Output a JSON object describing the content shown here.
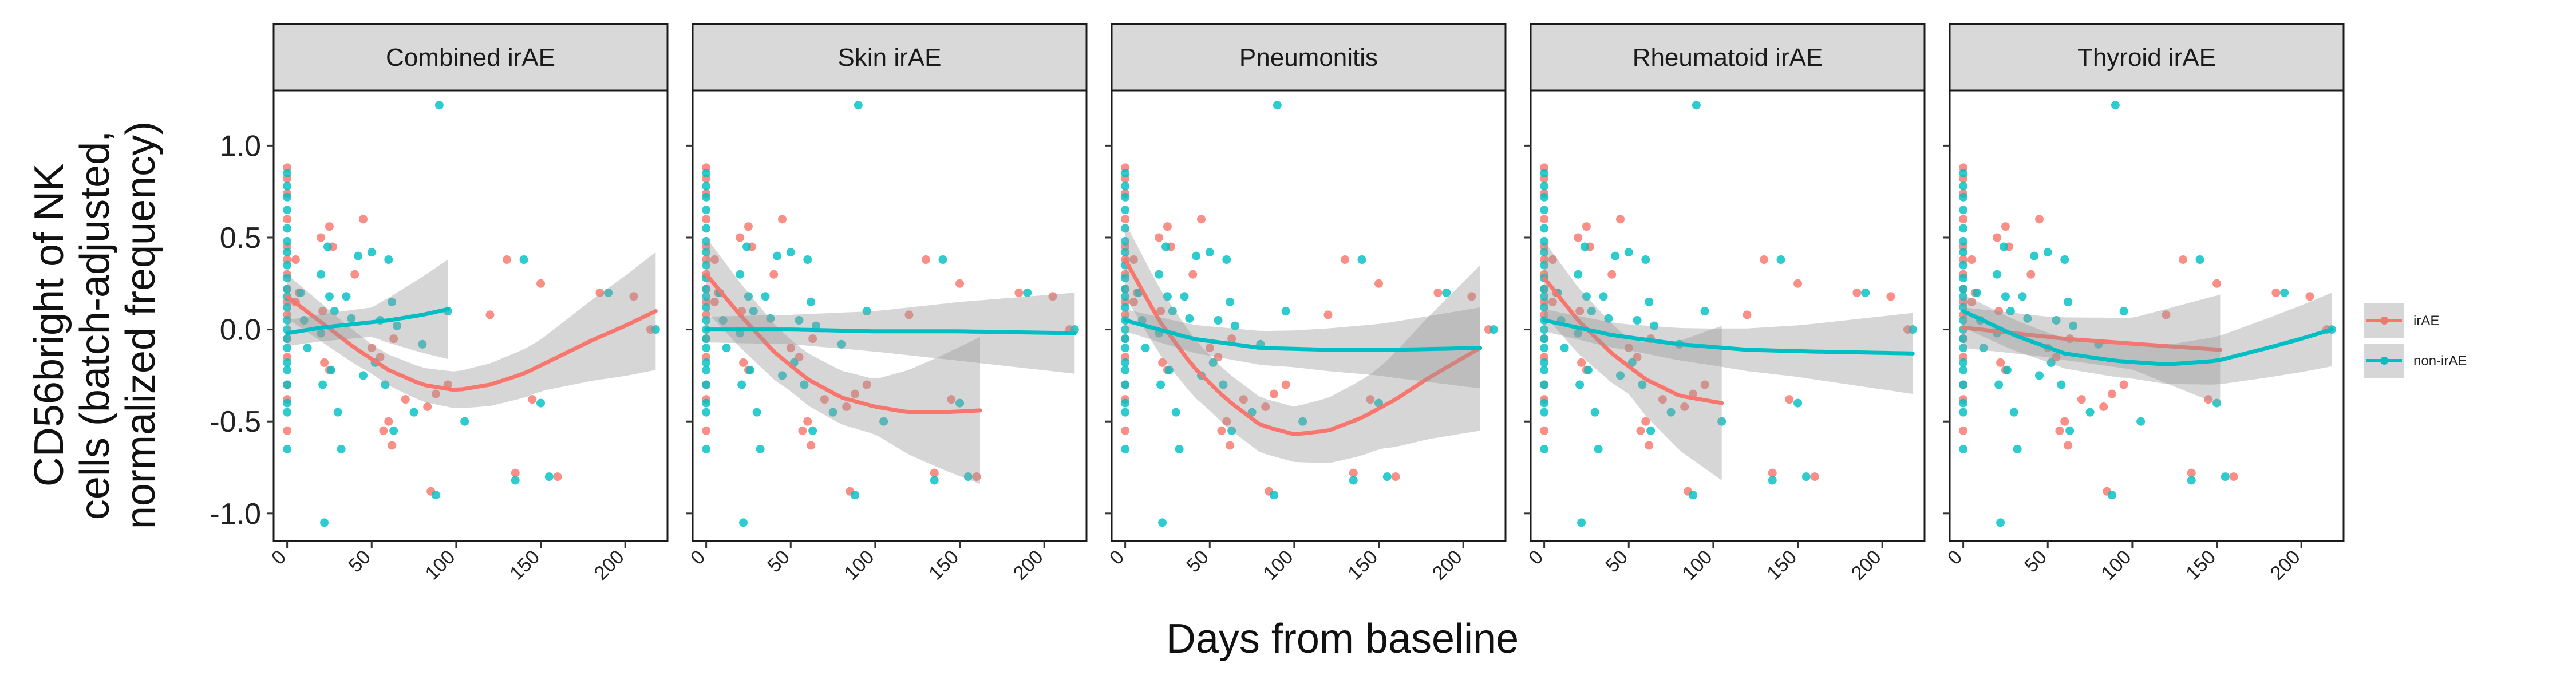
{
  "chart_data": {
    "type": "scatter",
    "xlabel": "Days from baseline",
    "ylabel_lines": [
      "CD56bright of NK",
      "cells (batch-adjusted,",
      "normalized frequency)"
    ],
    "xlim": [
      -8,
      225
    ],
    "ylim": [
      -1.15,
      1.3
    ],
    "x_ticks": [
      0,
      50,
      100,
      150,
      200
    ],
    "y_ticks": [
      -1.0,
      -0.5,
      0.0,
      0.5,
      1.0
    ],
    "y_tick_labels": [
      "-1.0",
      "-0.5",
      "0.0",
      "0.5",
      "1.0"
    ],
    "colors": {
      "irAE": "#F8766D",
      "non-irAE": "#00BFC4",
      "band": "#999999"
    },
    "legend": {
      "position": "right",
      "entries": [
        {
          "key": "irAE",
          "label": "irAE"
        },
        {
          "key": "non-irAE",
          "label": "non-irAE"
        }
      ]
    },
    "points": {
      "irAE": [
        [
          0,
          0.88
        ],
        [
          0,
          0.82
        ],
        [
          0,
          0.74
        ],
        [
          0,
          0.6
        ],
        [
          0,
          0.45
        ],
        [
          0,
          0.38
        ],
        [
          0,
          0.3
        ],
        [
          0,
          0.22
        ],
        [
          0,
          0.15
        ],
        [
          0,
          0.08
        ],
        [
          0,
          -0.05
        ],
        [
          0,
          -0.15
        ],
        [
          0,
          -0.3
        ],
        [
          0,
          -0.38
        ],
        [
          0,
          -0.55
        ],
        [
          5,
          0.38
        ],
        [
          5,
          0.15
        ],
        [
          7,
          0.2
        ],
        [
          20,
          0.5
        ],
        [
          21,
          0.1
        ],
        [
          22,
          -0.18
        ],
        [
          25,
          0.56
        ],
        [
          25,
          -0.22
        ],
        [
          27,
          0.45
        ],
        [
          40,
          0.3
        ],
        [
          45,
          0.6
        ],
        [
          50,
          -0.1
        ],
        [
          55,
          -0.15
        ],
        [
          57,
          -0.55
        ],
        [
          60,
          -0.5
        ],
        [
          62,
          -0.63
        ],
        [
          63,
          -0.05
        ],
        [
          70,
          -0.38
        ],
        [
          83,
          -0.42
        ],
        [
          85,
          -0.88
        ],
        [
          88,
          -0.35
        ],
        [
          95,
          -0.3
        ],
        [
          120,
          0.08
        ],
        [
          130,
          0.38
        ],
        [
          135,
          -0.78
        ],
        [
          145,
          -0.38
        ],
        [
          150,
          0.25
        ],
        [
          160,
          -0.8
        ],
        [
          185,
          0.2
        ],
        [
          205,
          0.18
        ],
        [
          215,
          0.0
        ]
      ],
      "non-irAE": [
        [
          0,
          0.85
        ],
        [
          0,
          0.78
        ],
        [
          0,
          0.72
        ],
        [
          0,
          0.65
        ],
        [
          0,
          0.55
        ],
        [
          0,
          0.48
        ],
        [
          0,
          0.42
        ],
        [
          0,
          0.35
        ],
        [
          0,
          0.28
        ],
        [
          0,
          0.22
        ],
        [
          0,
          0.18
        ],
        [
          0,
          0.12
        ],
        [
          0,
          0.05
        ],
        [
          0,
          0.0
        ],
        [
          0,
          -0.05
        ],
        [
          0,
          -0.1
        ],
        [
          0,
          -0.18
        ],
        [
          0,
          -0.22
        ],
        [
          0,
          -0.3
        ],
        [
          0,
          -0.4
        ],
        [
          0,
          -0.45
        ],
        [
          0,
          -0.65
        ],
        [
          8,
          0.2
        ],
        [
          10,
          0.05
        ],
        [
          12,
          -0.1
        ],
        [
          20,
          0.3
        ],
        [
          20,
          -0.02
        ],
        [
          21,
          -0.3
        ],
        [
          22,
          -1.05
        ],
        [
          24,
          0.45
        ],
        [
          25,
          0.18
        ],
        [
          26,
          -0.22
        ],
        [
          28,
          0.1
        ],
        [
          30,
          -0.45
        ],
        [
          32,
          -0.65
        ],
        [
          35,
          0.18
        ],
        [
          38,
          0.06
        ],
        [
          42,
          0.4
        ],
        [
          45,
          -0.25
        ],
        [
          50,
          0.42
        ],
        [
          52,
          -0.18
        ],
        [
          55,
          0.05
        ],
        [
          58,
          -0.3
        ],
        [
          60,
          0.38
        ],
        [
          62,
          0.15
        ],
        [
          63,
          -0.55
        ],
        [
          65,
          0.02
        ],
        [
          75,
          -0.45
        ],
        [
          80,
          -0.08
        ],
        [
          88,
          -0.9
        ],
        [
          90,
          1.22
        ],
        [
          95,
          0.1
        ],
        [
          105,
          -0.5
        ],
        [
          135,
          -0.82
        ],
        [
          140,
          0.38
        ],
        [
          150,
          -0.4
        ],
        [
          155,
          -0.8
        ],
        [
          190,
          0.2
        ],
        [
          218,
          0.0
        ]
      ]
    },
    "panels": [
      {
        "title": "Combined irAE",
        "fits": [
          {
            "group": "irAE",
            "x_range": [
              0,
              218
            ],
            "line": [
              [
                0,
                0.18
              ],
              [
                20,
                0.04
              ],
              [
                40,
                -0.1
              ],
              [
                60,
                -0.22
              ],
              [
                80,
                -0.3
              ],
              [
                100,
                -0.33
              ],
              [
                120,
                -0.3
              ],
              [
                140,
                -0.24
              ],
              [
                160,
                -0.15
              ],
              [
                180,
                -0.06
              ],
              [
                200,
                0.02
              ],
              [
                218,
                0.1
              ]
            ],
            "half_width": [
              [
                0,
                0.12
              ],
              [
                50,
                0.08
              ],
              [
                100,
                0.1
              ],
              [
                150,
                0.14
              ],
              [
                218,
                0.32
              ]
            ]
          },
          {
            "group": "non-irAE",
            "x_range": [
              0,
              95
            ],
            "line": [
              [
                0,
                -0.02
              ],
              [
                20,
                0.01
              ],
              [
                40,
                0.03
              ],
              [
                60,
                0.05
              ],
              [
                80,
                0.08
              ],
              [
                95,
                0.11
              ]
            ],
            "half_width": [
              [
                0,
                0.07
              ],
              [
                50,
                0.08
              ],
              [
                95,
                0.27
              ]
            ]
          }
        ]
      },
      {
        "title": "Skin irAE",
        "fits": [
          {
            "group": "irAE",
            "x_range": [
              0,
              162
            ],
            "line": [
              [
                0,
                0.3
              ],
              [
                20,
                0.08
              ],
              [
                40,
                -0.12
              ],
              [
                60,
                -0.27
              ],
              [
                80,
                -0.37
              ],
              [
                100,
                -0.42
              ],
              [
                120,
                -0.45
              ],
              [
                140,
                -0.45
              ],
              [
                162,
                -0.44
              ]
            ],
            "half_width": [
              [
                0,
                0.2
              ],
              [
                50,
                0.14
              ],
              [
                100,
                0.15
              ],
              [
                162,
                0.4
              ]
            ]
          },
          {
            "group": "non-irAE",
            "x_range": [
              0,
              218
            ],
            "line": [
              [
                0,
                0.0
              ],
              [
                50,
                0.0
              ],
              [
                100,
                -0.01
              ],
              [
                150,
                -0.01
              ],
              [
                218,
                -0.02
              ]
            ],
            "half_width": [
              [
                0,
                0.07
              ],
              [
                50,
                0.08
              ],
              [
                100,
                0.11
              ],
              [
                150,
                0.16
              ],
              [
                218,
                0.22
              ]
            ]
          }
        ]
      },
      {
        "title": "Pneumonitis",
        "fits": [
          {
            "group": "irAE",
            "x_range": [
              0,
              210
            ],
            "line": [
              [
                0,
                0.38
              ],
              [
                20,
                0.05
              ],
              [
                40,
                -0.2
              ],
              [
                60,
                -0.38
              ],
              [
                80,
                -0.52
              ],
              [
                100,
                -0.57
              ],
              [
                120,
                -0.55
              ],
              [
                140,
                -0.48
              ],
              [
                160,
                -0.38
              ],
              [
                180,
                -0.26
              ],
              [
                195,
                -0.18
              ],
              [
                210,
                -0.1
              ]
            ],
            "half_width": [
              [
                0,
                0.2
              ],
              [
                50,
                0.15
              ],
              [
                100,
                0.15
              ],
              [
                150,
                0.22
              ],
              [
                210,
                0.45
              ]
            ]
          },
          {
            "group": "non-irAE",
            "x_range": [
              0,
              210
            ],
            "line": [
              [
                0,
                0.05
              ],
              [
                40,
                -0.05
              ],
              [
                80,
                -0.1
              ],
              [
                120,
                -0.11
              ],
              [
                160,
                -0.11
              ],
              [
                210,
                -0.1
              ]
            ],
            "half_width": [
              [
                0,
                0.06
              ],
              [
                50,
                0.08
              ],
              [
                100,
                0.1
              ],
              [
                150,
                0.14
              ],
              [
                210,
                0.22
              ]
            ]
          }
        ]
      },
      {
        "title": "Rheumatoid irAE",
        "fits": [
          {
            "group": "irAE",
            "x_range": [
              0,
              105
            ],
            "line": [
              [
                0,
                0.28
              ],
              [
                20,
                0.05
              ],
              [
                40,
                -0.13
              ],
              [
                60,
                -0.27
              ],
              [
                80,
                -0.36
              ],
              [
                105,
                -0.4
              ]
            ],
            "half_width": [
              [
                0,
                0.2
              ],
              [
                50,
                0.15
              ],
              [
                105,
                0.42
              ]
            ]
          },
          {
            "group": "non-irAE",
            "x_range": [
              0,
              218
            ],
            "line": [
              [
                0,
                0.05
              ],
              [
                40,
                -0.03
              ],
              [
                80,
                -0.08
              ],
              [
                120,
                -0.11
              ],
              [
                160,
                -0.12
              ],
              [
                218,
                -0.13
              ]
            ],
            "half_width": [
              [
                0,
                0.06
              ],
              [
                50,
                0.07
              ],
              [
                100,
                0.1
              ],
              [
                150,
                0.14
              ],
              [
                218,
                0.22
              ]
            ]
          }
        ]
      },
      {
        "title": "Thyroid irAE",
        "fits": [
          {
            "group": "irAE",
            "x_range": [
              0,
              152
            ],
            "line": [
              [
                0,
                0.01
              ],
              [
                30,
                -0.02
              ],
              [
                60,
                -0.05
              ],
              [
                90,
                -0.07
              ],
              [
                120,
                -0.09
              ],
              [
                152,
                -0.11
              ]
            ],
            "half_width": [
              [
                0,
                0.11
              ],
              [
                50,
                0.11
              ],
              [
                100,
                0.14
              ],
              [
                152,
                0.3
              ]
            ]
          },
          {
            "group": "non-irAE",
            "x_range": [
              0,
              218
            ],
            "line": [
              [
                0,
                0.1
              ],
              [
                30,
                -0.03
              ],
              [
                60,
                -0.13
              ],
              [
                90,
                -0.17
              ],
              [
                120,
                -0.19
              ],
              [
                150,
                -0.17
              ],
              [
                180,
                -0.1
              ],
              [
                200,
                -0.05
              ],
              [
                218,
                0.0
              ]
            ],
            "half_width": [
              [
                0,
                0.09
              ],
              [
                50,
                0.08
              ],
              [
                100,
                0.09
              ],
              [
                150,
                0.13
              ],
              [
                218,
                0.2
              ]
            ]
          }
        ]
      }
    ]
  }
}
